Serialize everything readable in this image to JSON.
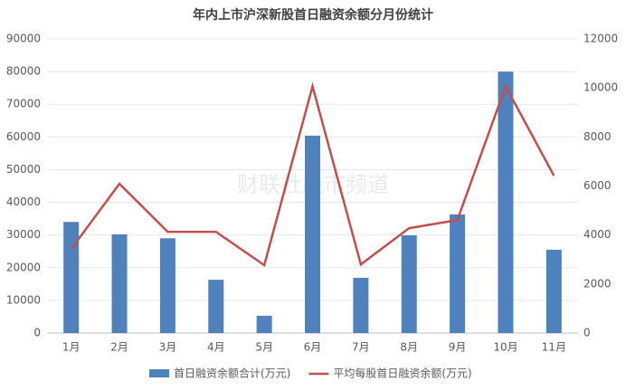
{
  "chart_data": {
    "type": "bar",
    "title": "年内上市沪深新股首日融资余额分月份统计",
    "watermark": "财联社股市频道",
    "categories": [
      "1月",
      "2月",
      "3月",
      "4月",
      "5月",
      "6月",
      "7月",
      "8月",
      "9月",
      "10月",
      "11月"
    ],
    "series": [
      {
        "name": "首日融资余额合计(万元)",
        "type": "bar",
        "color": "#4f81bd",
        "values": [
          34000,
          30200,
          29000,
          16300,
          5300,
          60400,
          16900,
          29900,
          36300,
          80000,
          25500
        ]
      },
      {
        "name": "平均每股首日融资余额(万元)",
        "type": "line",
        "axis": "y2",
        "color": "#c0504d",
        "values": [
          3430,
          6090,
          4130,
          4130,
          2770,
          10070,
          2800,
          4280,
          4610,
          10070,
          6420
        ]
      }
    ],
    "ylim": [
      0,
      90000
    ],
    "yticks": [
      0,
      10000,
      20000,
      30000,
      40000,
      50000,
      60000,
      70000,
      80000,
      90000
    ],
    "y2lim": [
      0,
      12000
    ],
    "y2ticks": [
      0,
      2000,
      4000,
      6000,
      8000,
      10000,
      12000
    ],
    "grid": true
  }
}
